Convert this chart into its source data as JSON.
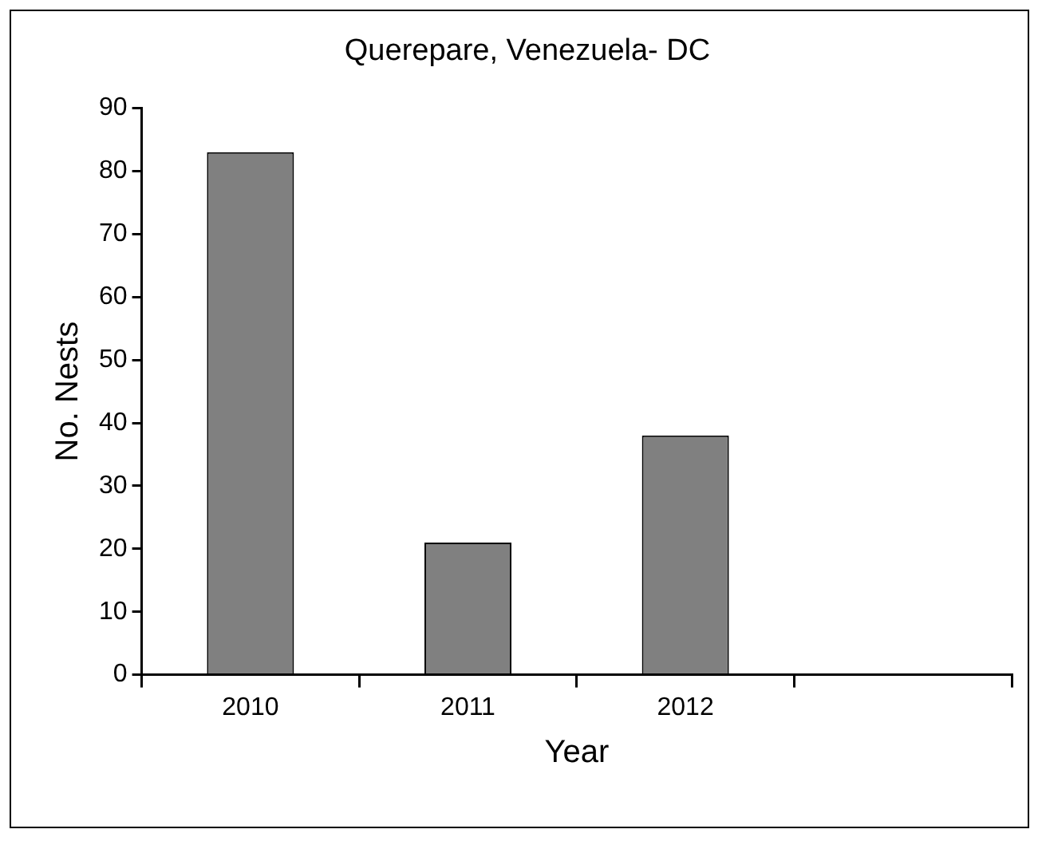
{
  "chart_data": {
    "type": "bar",
    "title": "Querepare, Venezuela- DC",
    "xlabel": "Year",
    "ylabel": "No. Nests",
    "categories": [
      "2010",
      "2011",
      "2012",
      null
    ],
    "values": [
      83,
      21,
      38,
      null
    ],
    "color": "#808080",
    "ylim": [
      0,
      90
    ],
    "yticks": [
      0,
      10,
      20,
      30,
      40,
      50,
      60,
      70,
      80,
      90
    ],
    "legend": false
  }
}
